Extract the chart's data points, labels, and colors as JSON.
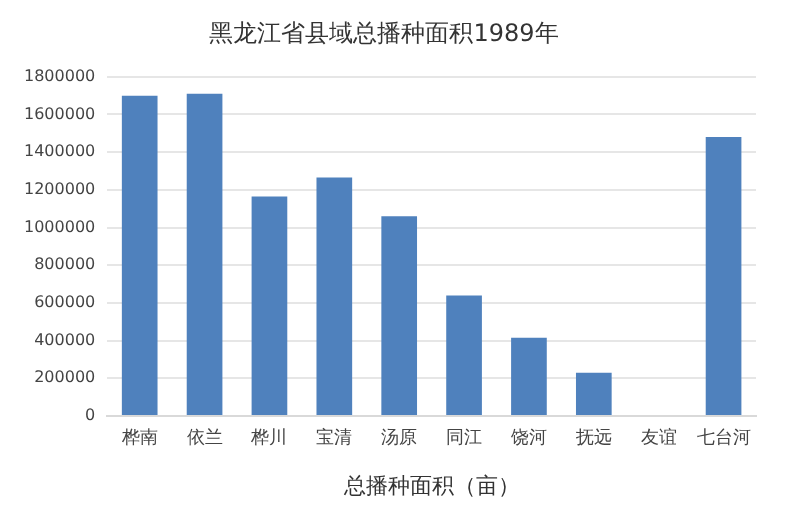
{
  "chart_data": {
    "type": "bar",
    "title": "黑龙江省县域总播种面积1989年",
    "xlabel": "总播种面积（亩）",
    "categories": [
      "桦南",
      "依兰",
      "桦川",
      "宝清",
      "汤原",
      "同江",
      "饶河",
      "抚远",
      "友谊",
      "七台河"
    ],
    "values": [
      1700000,
      1710000,
      1165000,
      1265000,
      1060000,
      640000,
      415000,
      230000,
      null,
      1480000
    ],
    "color": "#4f81bd",
    "ylim": [
      0,
      1800000
    ],
    "yticks": [
      0,
      200000,
      400000,
      600000,
      800000,
      1000000,
      1200000,
      1400000,
      1600000,
      1800000
    ],
    "grid": "y"
  }
}
